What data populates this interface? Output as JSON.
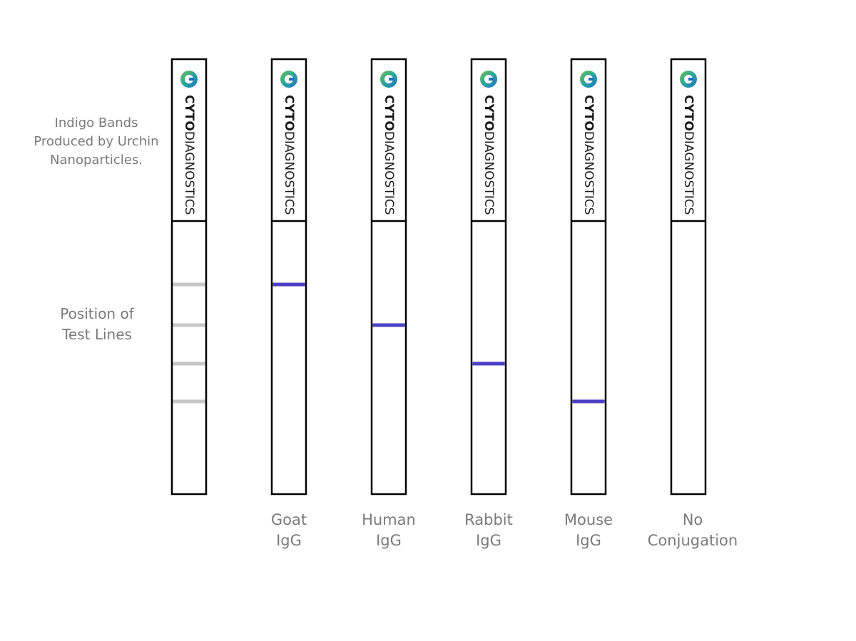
{
  "annotations": {
    "bands_note": [
      "Indigo Bands",
      "Produced by Urchin",
      "Nanoparticles."
    ],
    "test_lines_note": [
      "Position of",
      "Test Lines"
    ]
  },
  "logo": {
    "brand": "CYTO",
    "suffix": "DIAGNOSTICS"
  },
  "strips": [
    {
      "label": [
        "Goat",
        "IgG"
      ]
    },
    {
      "label": [
        "Human",
        "IgG"
      ]
    },
    {
      "label": [
        "Rabbit",
        "IgG"
      ]
    },
    {
      "label": [
        "Mouse",
        "IgG"
      ]
    },
    {
      "label": [
        "No",
        "Conjugation"
      ]
    }
  ]
}
